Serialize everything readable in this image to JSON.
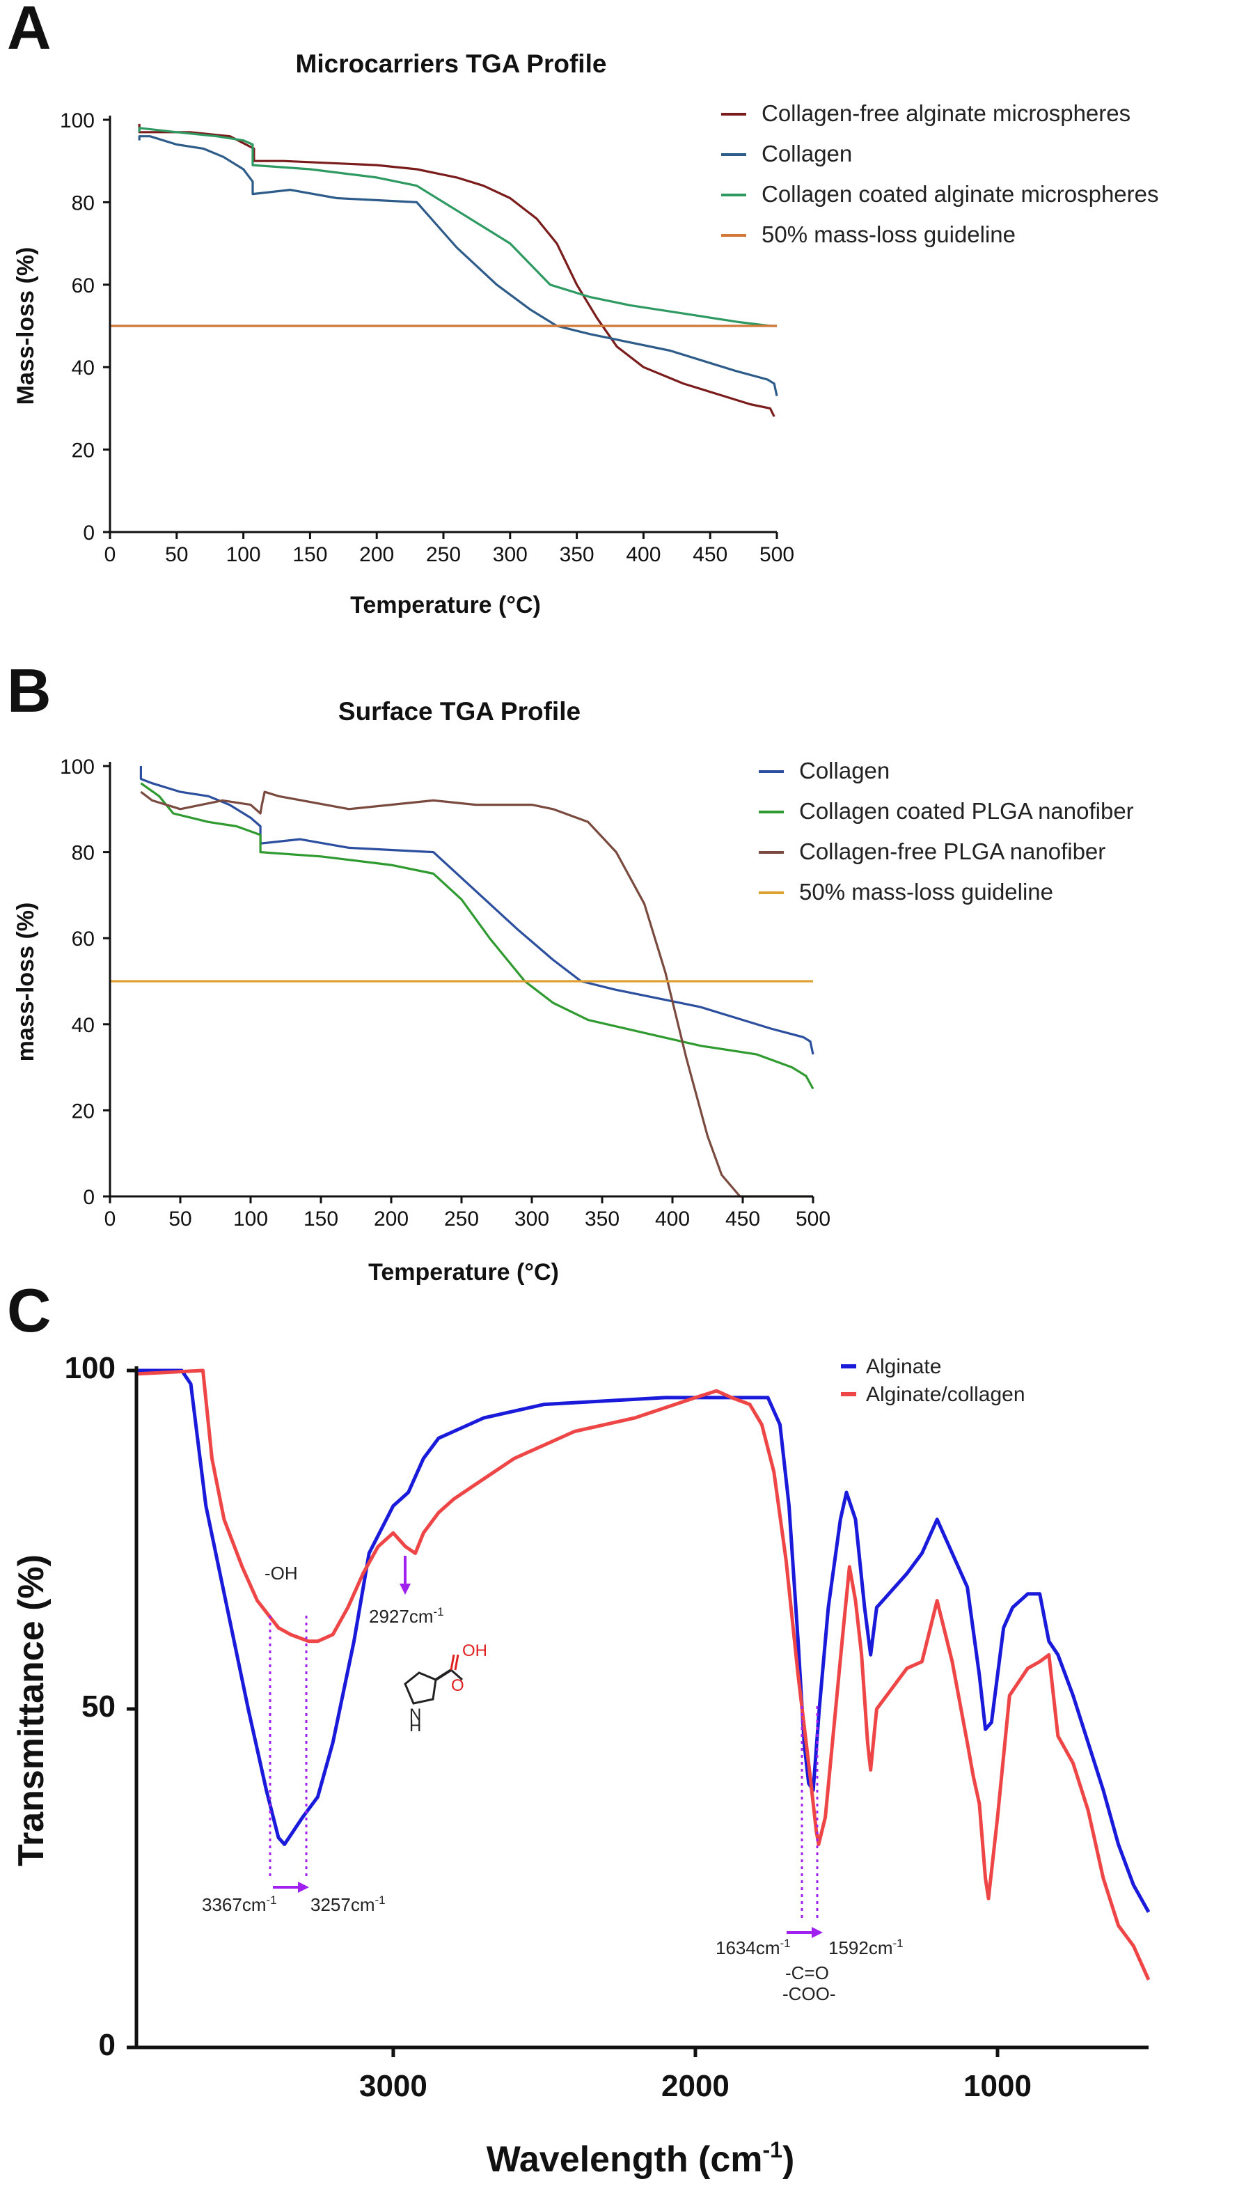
{
  "figure": {
    "panels": [
      "A",
      "B",
      "C"
    ]
  },
  "chart_data": [
    {
      "id": "A",
      "type": "line",
      "title": "Microcarriers TGA Profile",
      "xlabel": "Temperature (°C)",
      "ylabel": "Mass-loss (%)",
      "xlim": [
        0,
        500
      ],
      "ylim": [
        0,
        100
      ],
      "xticks": [
        0,
        50,
        100,
        150,
        200,
        250,
        300,
        350,
        400,
        450,
        500
      ],
      "yticks": [
        0,
        20,
        40,
        60,
        80,
        100
      ],
      "legend_position": "right",
      "series": [
        {
          "name": "Collagen-free alginate microspheres",
          "color": "#7b1c1c",
          "x": [
            22,
            22,
            30,
            60,
            90,
            108,
            108,
            130,
            200,
            230,
            260,
            280,
            300,
            320,
            335,
            350,
            365,
            380,
            400,
            430,
            460,
            480,
            495,
            498
          ],
          "y": [
            99,
            97,
            97,
            97,
            96,
            93,
            90,
            90,
            89,
            88,
            86,
            84,
            81,
            76,
            70,
            60,
            52,
            45,
            40,
            36,
            33,
            31,
            30,
            28
          ]
        },
        {
          "name": "Collagen",
          "color": "#2e5c8a",
          "x": [
            22,
            22,
            30,
            50,
            70,
            85,
            100,
            107,
            107,
            135,
            170,
            230,
            260,
            290,
            315,
            335,
            360,
            390,
            420,
            450,
            470,
            493,
            498,
            500
          ],
          "y": [
            95,
            96,
            96,
            94,
            93,
            91,
            88,
            85,
            82,
            83,
            81,
            80,
            69,
            60,
            54,
            50,
            48,
            46,
            44,
            41,
            39,
            37,
            36,
            33
          ]
        },
        {
          "name": "Collagen coated alginate microspheres",
          "color": "#2e9a62",
          "x": [
            22,
            22,
            50,
            80,
            100,
            107,
            107,
            150,
            200,
            230,
            260,
            280,
            300,
            330,
            360,
            390,
            430,
            470,
            495,
            500
          ],
          "y": [
            97,
            98,
            97,
            96,
            95,
            94,
            89,
            88,
            86,
            84,
            78,
            74,
            70,
            60,
            57,
            55,
            53,
            51,
            50,
            50
          ]
        },
        {
          "name": "50% mass-loss guideline",
          "color": "#d2793a",
          "x": [
            0,
            500
          ],
          "y": [
            50,
            50
          ]
        }
      ]
    },
    {
      "id": "B",
      "type": "line",
      "title": "Surface TGA Profile",
      "xlabel": "Temperature (°C)",
      "ylabel": "mass-loss (%)",
      "xlim": [
        0,
        500
      ],
      "ylim": [
        0,
        100
      ],
      "xticks": [
        0,
        50,
        100,
        150,
        200,
        250,
        300,
        350,
        400,
        450,
        500
      ],
      "yticks": [
        0,
        20,
        40,
        60,
        80,
        100
      ],
      "legend_position": "right",
      "series": [
        {
          "name": "Collagen",
          "color": "#2b4f9e",
          "x": [
            22,
            22,
            30,
            50,
            70,
            85,
            100,
            107,
            107,
            135,
            170,
            230,
            260,
            290,
            315,
            335,
            360,
            390,
            420,
            450,
            470,
            493,
            498,
            500
          ],
          "y": [
            100,
            97,
            96,
            94,
            93,
            91,
            88,
            86,
            82,
            83,
            81,
            80,
            71,
            62,
            55,
            50,
            48,
            46,
            44,
            41,
            39,
            37,
            36,
            33
          ]
        },
        {
          "name": "Collagen coated PLGA nanofiber",
          "color": "#2f9a2f",
          "x": [
            22,
            22,
            35,
            45,
            70,
            90,
            107,
            107,
            150,
            200,
            230,
            250,
            270,
            295,
            315,
            340,
            380,
            420,
            460,
            485,
            495,
            500
          ],
          "y": [
            96,
            96,
            93,
            89,
            87,
            86,
            84,
            80,
            79,
            77,
            75,
            69,
            60,
            50,
            45,
            41,
            38,
            35,
            33,
            30,
            28,
            25
          ]
        },
        {
          "name": "Collagen-free PLGA nanofiber",
          "color": "#7a4a3f",
          "x": [
            22,
            30,
            50,
            80,
            100,
            107,
            108,
            110,
            120,
            170,
            230,
            260,
            300,
            315,
            340,
            360,
            380,
            395,
            410,
            425,
            435,
            448,
            460,
            500
          ],
          "y": [
            94,
            92,
            90,
            92,
            91,
            89,
            91,
            94,
            93,
            90,
            92,
            91,
            91,
            90,
            87,
            80,
            68,
            52,
            32,
            14,
            5,
            0,
            0,
            0
          ]
        },
        {
          "name": "50% mass-loss guideline",
          "color": "#dda033",
          "x": [
            0,
            500
          ],
          "y": [
            50,
            50
          ]
        }
      ]
    },
    {
      "id": "C",
      "type": "line",
      "xlabel": "Wavelength (cm",
      "xlabel_sup": "-1",
      "xlabel_end": ")",
      "ylabel": "Transmittance (%)",
      "xlim": [
        3850,
        500
      ],
      "ylim": [
        0,
        100
      ],
      "xticks": [
        3000,
        2000,
        1000
      ],
      "yticks": [
        0,
        50,
        100
      ],
      "legend_position": "top-right",
      "series": [
        {
          "name": "Alginate",
          "color": "#1a1adb",
          "x": [
            3850,
            3700,
            3670,
            3620,
            3550,
            3480,
            3420,
            3380,
            3360,
            3330,
            3300,
            3250,
            3200,
            3130,
            3080,
            3000,
            2950,
            2900,
            2850,
            2800,
            2700,
            2600,
            2500,
            2300,
            2100,
            1950,
            1800,
            1760,
            1720,
            1690,
            1660,
            1640,
            1625,
            1610,
            1590,
            1560,
            1520,
            1500,
            1470,
            1440,
            1420,
            1400,
            1300,
            1250,
            1200,
            1150,
            1100,
            1060,
            1040,
            1020,
            980,
            950,
            900,
            860,
            830,
            800,
            750,
            700,
            650,
            600,
            550,
            500
          ],
          "y": [
            100,
            100,
            98,
            80,
            65,
            50,
            38,
            31,
            30,
            32,
            34,
            37,
            45,
            60,
            73,
            80,
            82,
            87,
            90,
            91,
            93,
            94,
            95,
            95.5,
            96,
            96,
            96,
            96,
            92,
            80,
            60,
            45,
            39,
            38,
            50,
            65,
            78,
            82,
            78,
            65,
            58,
            65,
            70,
            73,
            78,
            73,
            68,
            55,
            47,
            48,
            62,
            65,
            67,
            67,
            60,
            58,
            52,
            45,
            38,
            30,
            24,
            20
          ]
        },
        {
          "name": "Alginate/collagen",
          "color": "#ee4646",
          "x": [
            3850,
            3630,
            3600,
            3560,
            3500,
            3450,
            3380,
            3340,
            3280,
            3250,
            3200,
            3150,
            3100,
            3050,
            3000,
            2960,
            2927,
            2900,
            2850,
            2800,
            2700,
            2600,
            2400,
            2200,
            2000,
            1930,
            1880,
            1820,
            1780,
            1740,
            1700,
            1660,
            1620,
            1600,
            1592,
            1570,
            1540,
            1510,
            1490,
            1470,
            1450,
            1430,
            1420,
            1400,
            1300,
            1250,
            1200,
            1150,
            1100,
            1080,
            1060,
            1040,
            1030,
            1000,
            960,
            900,
            860,
            830,
            800,
            750,
            700,
            650,
            600,
            550,
            500
          ],
          "y": [
            99.5,
            100,
            87,
            78,
            71,
            66,
            62,
            61,
            60,
            60,
            61,
            65,
            70,
            74,
            76,
            74,
            73,
            76,
            79,
            81,
            84,
            87,
            91,
            93,
            96,
            97,
            96,
            95,
            92,
            85,
            72,
            55,
            40,
            32,
            30,
            34,
            48,
            62,
            71,
            66,
            58,
            45,
            41,
            50,
            56,
            57,
            66,
            57,
            45,
            40,
            36,
            25,
            22,
            34,
            52,
            56,
            57,
            58,
            46,
            42,
            35,
            25,
            18,
            15,
            10
          ]
        }
      ],
      "annotations": {
        "oh": "-OH",
        "peak_3367": "3367cm",
        "peak_3257": "3257cm",
        "peak_2927": "2927cm",
        "peak_1634": "1634cm",
        "peak_1592": "1592cm",
        "unit_sup": "-1",
        "co": "-C=O",
        "coo": "-COO-",
        "molecule_n": "N",
        "molecule_h": "H",
        "molecule_oh": "OH",
        "molecule_o": "O"
      }
    }
  ]
}
